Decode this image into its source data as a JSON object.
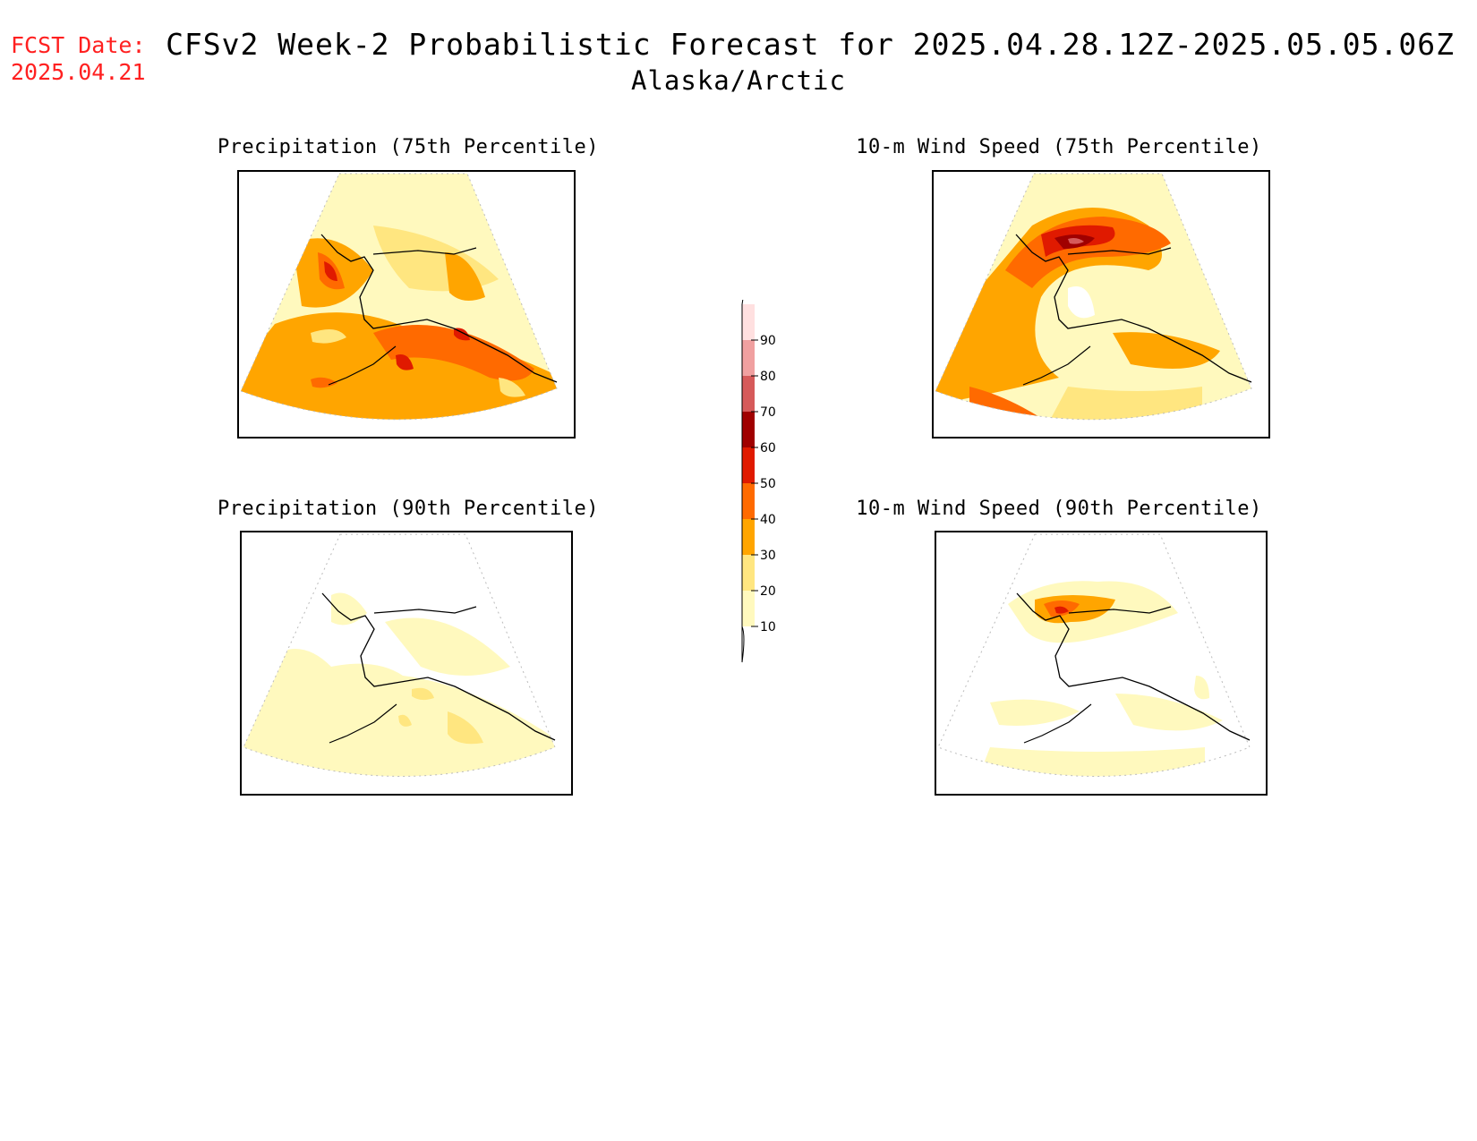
{
  "header": {
    "fcst_label": "FCST Date:",
    "fcst_date": "2025.04.21",
    "title": "CFSv2 Week-2 Probabilistic Forecast for 2025.04.28.12Z-2025.05.05.06Z",
    "subtitle": "Alaska/Arctic"
  },
  "panels": [
    {
      "title": "Precipitation (75th Percentile)"
    },
    {
      "title": "10-m Wind Speed (75th Percentile)"
    },
    {
      "title": "Precipitation (90th Percentile)"
    },
    {
      "title": "10-m Wind Speed (90th Percentile)"
    }
  ],
  "colorbar": {
    "levels": [
      "10",
      "20",
      "30",
      "40",
      "50",
      "60",
      "70",
      "80",
      "90"
    ],
    "colors": [
      "#fff9be",
      "#ffe680",
      "#ffa500",
      "#ff6a00",
      "#e01a00",
      "#a00000",
      "#d65a5a",
      "#f0a0a0",
      "#ffe0e0"
    ]
  }
}
